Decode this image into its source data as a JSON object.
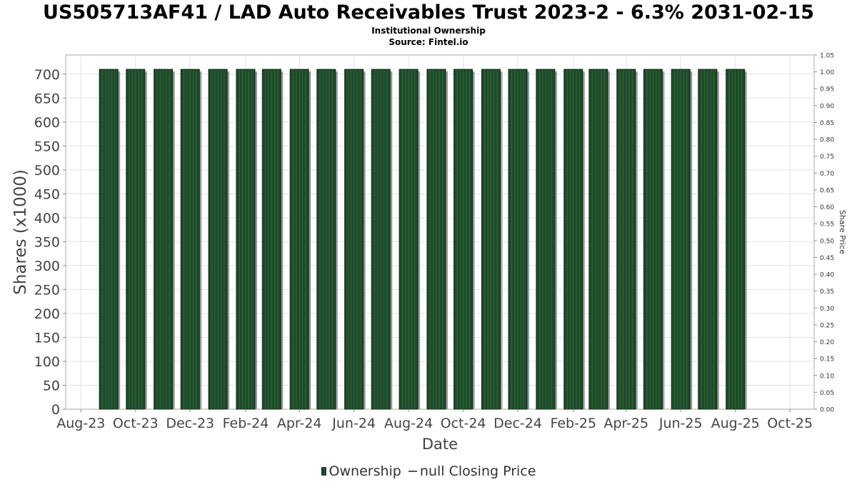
{
  "chart_data": {
    "type": "bar",
    "title": "US505713AF41 / LAD Auto Receivables Trust 2023-2 - 6.3% 2031-02-15",
    "subtitle": "Institutional Ownership",
    "source": "Source: Fintel.io",
    "xlabel": "Date",
    "ylabel": "Shares (x1000)",
    "y2label": "Share Price",
    "ylim": [
      0,
      740
    ],
    "y2lim": [
      0,
      1.05
    ],
    "yticks": [
      0,
      50,
      100,
      150,
      200,
      250,
      300,
      350,
      400,
      450,
      500,
      550,
      600,
      650,
      700
    ],
    "y2ticks": [
      "0.00",
      "0.05",
      "0.10",
      "0.15",
      "0.20",
      "0.25",
      "0.30",
      "0.35",
      "0.40",
      "0.45",
      "0.50",
      "0.55",
      "0.60",
      "0.65",
      "0.70",
      "0.75",
      "0.80",
      "0.85",
      "0.90",
      "0.95",
      "1.00",
      "1.05"
    ],
    "xlim": [
      "2023-07-15",
      "2025-10-28"
    ],
    "xticks": [
      {
        "label": "Aug-23",
        "date": "2023-08-01"
      },
      {
        "label": "Oct-23",
        "date": "2023-10-01"
      },
      {
        "label": "Dec-23",
        "date": "2023-12-01"
      },
      {
        "label": "Feb-24",
        "date": "2024-02-01"
      },
      {
        "label": "Apr-24",
        "date": "2024-04-01"
      },
      {
        "label": "Jun-24",
        "date": "2024-06-01"
      },
      {
        "label": "Aug-24",
        "date": "2024-08-01"
      },
      {
        "label": "Oct-24",
        "date": "2024-10-01"
      },
      {
        "label": "Dec-24",
        "date": "2024-12-01"
      },
      {
        "label": "Feb-25",
        "date": "2025-02-01"
      },
      {
        "label": "Apr-25",
        "date": "2025-04-01"
      },
      {
        "label": "Jun-25",
        "date": "2025-06-01"
      },
      {
        "label": "Aug-25",
        "date": "2025-08-01"
      },
      {
        "label": "Oct-25",
        "date": "2025-10-01"
      }
    ],
    "grid": true,
    "legend_position": "bottom",
    "series": [
      {
        "name": "Ownership",
        "color": "#1e4a2a",
        "x": [
          "2023-09-01",
          "2023-10-01",
          "2023-11-01",
          "2023-12-01",
          "2024-01-01",
          "2024-02-01",
          "2024-03-01",
          "2024-04-01",
          "2024-05-01",
          "2024-06-01",
          "2024-07-01",
          "2024-08-01",
          "2024-09-01",
          "2024-10-01",
          "2024-11-01",
          "2024-12-01",
          "2025-01-01",
          "2025-02-01",
          "2025-03-01",
          "2025-04-01",
          "2025-05-01",
          "2025-06-01",
          "2025-07-01",
          "2025-08-01"
        ],
        "values": [
          710,
          710,
          710,
          710,
          710,
          710,
          710,
          710,
          710,
          710,
          710,
          710,
          710,
          710,
          710,
          710,
          710,
          710,
          710,
          710,
          710,
          710,
          710,
          710
        ]
      }
    ],
    "legend": [
      {
        "label": "Ownership"
      },
      {
        "label": "null Closing Price"
      }
    ]
  }
}
